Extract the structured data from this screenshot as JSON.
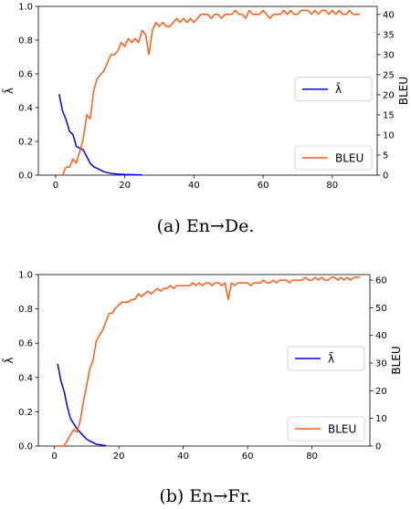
{
  "chart_data": [
    {
      "type": "line",
      "caption": "(a)  En→De.",
      "ylabel_left": "λ̄",
      "ylabel_right": "BLEU",
      "xlim": [
        -5,
        93
      ],
      "ylim_left": [
        0,
        1.0
      ],
      "ylim_right": [
        0,
        42
      ],
      "xticks": [
        0,
        20,
        40,
        60,
        80
      ],
      "yticks_left": [
        0.0,
        0.2,
        0.4,
        0.6,
        0.8,
        1.0
      ],
      "yticks_right": [
        0,
        5,
        10,
        15,
        20,
        25,
        30,
        35,
        40
      ],
      "series": [
        {
          "name": "λ̄",
          "axis": "left",
          "color": "#0000ee",
          "x": [
            1,
            2,
            3,
            4,
            5,
            6,
            7,
            8,
            9,
            10,
            11,
            12,
            13,
            14,
            15,
            16,
            17,
            18,
            19,
            20,
            21,
            22,
            23,
            24,
            25
          ],
          "y": [
            0.48,
            0.38,
            0.33,
            0.26,
            0.24,
            0.17,
            0.16,
            0.15,
            0.11,
            0.07,
            0.05,
            0.04,
            0.03,
            0.02,
            0.015,
            0.01,
            0.008,
            0.006,
            0.005,
            0.004,
            0.003,
            0.003,
            0.002,
            0.002,
            0.002
          ]
        },
        {
          "name": "BLEU",
          "axis": "right",
          "color": "#ff5a14",
          "x": [
            1,
            2,
            3,
            4,
            5,
            6,
            7,
            8,
            9,
            10,
            11,
            12,
            13,
            14,
            15,
            16,
            17,
            18,
            19,
            20,
            21,
            22,
            23,
            24,
            25,
            26,
            27,
            28,
            29,
            30,
            31,
            32,
            33,
            34,
            35,
            36,
            37,
            38,
            39,
            40,
            41,
            42,
            43,
            44,
            45,
            46,
            47,
            48,
            49,
            50,
            51,
            52,
            53,
            54,
            55,
            56,
            57,
            58,
            59,
            60,
            61,
            62,
            63,
            64,
            65,
            66,
            67,
            68,
            69,
            70,
            71,
            72,
            73,
            74,
            75,
            76,
            77,
            78,
            79,
            80,
            81,
            82,
            83,
            84,
            85,
            86,
            87,
            88
          ],
          "y": [
            0,
            0,
            2,
            2,
            4,
            3,
            6,
            9,
            15,
            14,
            21,
            24,
            25,
            26,
            28,
            30,
            30,
            31,
            33,
            32,
            34,
            33,
            34,
            33,
            36,
            35,
            30,
            36,
            38,
            37,
            38,
            37,
            37,
            38,
            39,
            38,
            39,
            38,
            39,
            38,
            39,
            40,
            40,
            40,
            39,
            40,
            40,
            39,
            40,
            40,
            40,
            41,
            40,
            40,
            39,
            41,
            40,
            40,
            40,
            41,
            40,
            39,
            40,
            40,
            40,
            41,
            40,
            41,
            40,
            40,
            41,
            41,
            41,
            40,
            41,
            40,
            41,
            41,
            40,
            41,
            40,
            41,
            40,
            40,
            41,
            40,
            40,
            40
          ]
        }
      ],
      "legends": [
        {
          "label": "λ̄",
          "color": "#0000ee",
          "placement": "right-middle"
        },
        {
          "label": "BLEU",
          "color": "#ff5a14",
          "placement": "bottom-right"
        }
      ]
    },
    {
      "type": "line",
      "caption": "(b)  En→Fr.",
      "ylabel_left": "λ̄",
      "ylabel_right": "BLEU",
      "xlim": [
        -5,
        98
      ],
      "ylim_left": [
        0,
        1.0
      ],
      "ylim_right": [
        0,
        62
      ],
      "xticks": [
        0,
        20,
        40,
        60,
        80
      ],
      "yticks_left": [
        0.0,
        0.2,
        0.4,
        0.6,
        0.8,
        1.0
      ],
      "yticks_right": [
        0,
        10,
        20,
        30,
        40,
        50,
        60
      ],
      "series": [
        {
          "name": "λ̄",
          "axis": "left",
          "color": "#0000ee",
          "x": [
            1,
            2,
            3,
            4,
            5,
            6,
            7,
            8,
            9,
            10,
            11,
            12,
            13,
            14,
            15,
            16
          ],
          "y": [
            0.48,
            0.38,
            0.32,
            0.23,
            0.16,
            0.13,
            0.1,
            0.08,
            0.06,
            0.04,
            0.03,
            0.02,
            0.01,
            0.008,
            0.005,
            0.003
          ]
        },
        {
          "name": "BLEU",
          "axis": "right",
          "color": "#ff5a14",
          "x": [
            1,
            2,
            3,
            4,
            5,
            6,
            7,
            8,
            9,
            10,
            11,
            12,
            13,
            14,
            15,
            16,
            17,
            18,
            19,
            20,
            21,
            22,
            23,
            24,
            25,
            26,
            27,
            28,
            29,
            30,
            31,
            32,
            33,
            34,
            35,
            36,
            37,
            38,
            39,
            40,
            41,
            42,
            43,
            44,
            45,
            46,
            47,
            48,
            49,
            50,
            51,
            52,
            53,
            54,
            55,
            56,
            57,
            58,
            59,
            60,
            61,
            62,
            63,
            64,
            65,
            66,
            67,
            68,
            69,
            70,
            71,
            72,
            73,
            74,
            75,
            76,
            77,
            78,
            79,
            80,
            81,
            82,
            83,
            84,
            85,
            86,
            87,
            88,
            89,
            90,
            91,
            92,
            93,
            94,
            95
          ],
          "y": [
            0,
            0,
            0,
            2,
            4,
            6,
            5,
            9,
            16,
            22,
            28,
            31,
            38,
            40,
            42,
            45,
            48,
            48,
            50,
            51,
            52,
            52,
            52,
            53,
            53,
            55,
            54,
            55,
            56,
            55,
            56,
            57,
            56,
            57,
            57,
            58,
            57,
            58,
            58,
            58,
            58,
            58,
            59,
            58,
            59,
            58,
            59,
            59,
            58,
            59,
            59,
            58,
            59,
            53,
            59,
            58,
            59,
            59,
            59,
            59,
            58,
            59,
            59,
            59,
            60,
            59,
            59,
            60,
            59,
            60,
            60,
            60,
            59,
            60,
            60,
            60,
            60,
            61,
            60,
            60,
            61,
            60,
            61,
            60,
            60,
            61,
            61,
            60,
            61,
            60,
            61,
            60,
            61,
            61,
            61
          ]
        }
      ],
      "legends": [
        {
          "label": "λ̄",
          "color": "#0000ee",
          "placement": "right-middle"
        },
        {
          "label": "BLEU",
          "color": "#ff5a14",
          "placement": "bottom-right"
        }
      ]
    }
  ]
}
